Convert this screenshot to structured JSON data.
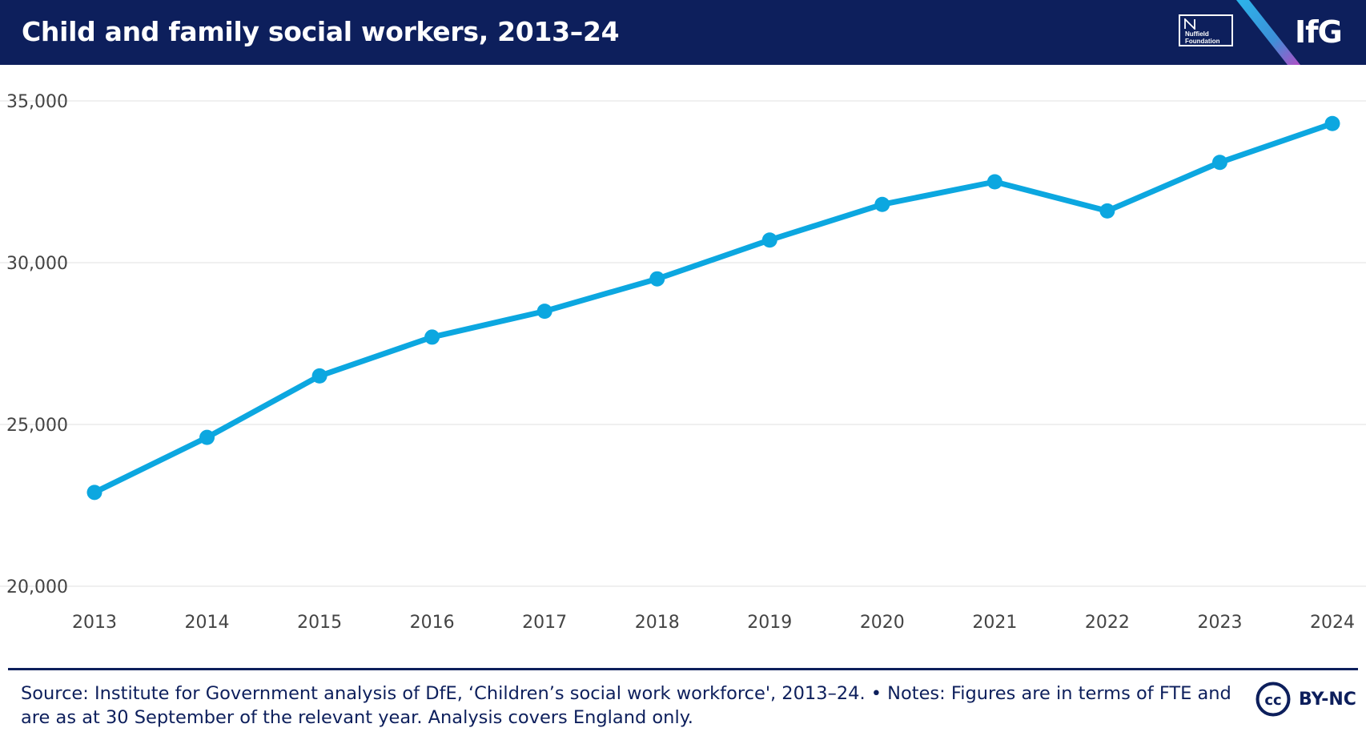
{
  "header": {
    "title": "Child and family social workers, 2013–24",
    "partner_logo_lines": [
      "Nuffield",
      "Foundation"
    ],
    "brand_logo": "IfG"
  },
  "colors": {
    "header_bg": "#0d1f5c",
    "series_line": "#0ca7e0",
    "gridline": "#e6e6e6",
    "axis_text": "#444444",
    "footer_text": "#0d1f5c"
  },
  "chart_data": {
    "type": "line",
    "title": "Child and family social workers, 2013–24",
    "xlabel": "",
    "ylabel": "",
    "x": [
      "2013",
      "2014",
      "2015",
      "2016",
      "2017",
      "2018",
      "2019",
      "2020",
      "2021",
      "2022",
      "2023",
      "2024"
    ],
    "series": [
      {
        "name": "Child and family social workers (FTE)",
        "values": [
          22900,
          24600,
          26500,
          27700,
          28500,
          29500,
          30700,
          31800,
          32500,
          31600,
          33100,
          34300
        ]
      }
    ],
    "ylim": [
      20000,
      35000
    ],
    "y_ticks": [
      20000,
      25000,
      30000,
      35000
    ],
    "y_tick_labels": [
      "20,000",
      "25,000",
      "30,000",
      "35,000"
    ],
    "grid": true,
    "legend": "none"
  },
  "footer": {
    "source_line_1": "Source: Institute for Government analysis of DfE, ‘Children’s social work workforce', 2013–24. • Notes: Figures are in terms of FTE and",
    "source_line_2": "are as at 30 September of the relevant year. Analysis covers England only.",
    "license_badge": "cc",
    "license_label": "BY-NC"
  }
}
